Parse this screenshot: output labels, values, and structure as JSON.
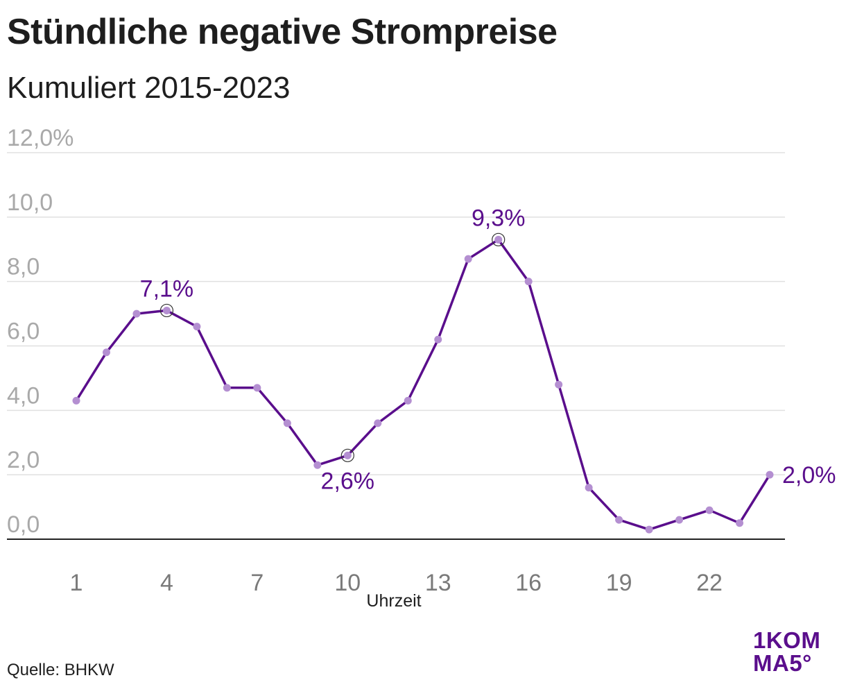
{
  "header": {
    "title": "Stündliche negative Strompreise",
    "subtitle": "Kumuliert 2015-2023"
  },
  "footer": {
    "source": "Quelle: BHKW",
    "logo_line1": "1KOM",
    "logo_line2": "MA5°"
  },
  "colors": {
    "line": "#5a0e8c",
    "marker": "#b48fd1",
    "grid": "#e0e0e0",
    "axis": "#222222",
    "ytick": "#a9a9a9",
    "xtick": "#7a7a7a"
  },
  "chart_data": {
    "type": "line",
    "title": "Stündliche negative Strompreise",
    "subtitle": "Kumuliert 2015-2023",
    "xlabel": "Uhrzeit",
    "ylabel": "",
    "x": [
      1,
      2,
      3,
      4,
      5,
      6,
      7,
      8,
      9,
      10,
      11,
      12,
      13,
      14,
      15,
      16,
      17,
      18,
      19,
      20,
      21,
      22,
      23,
      24
    ],
    "series": [
      {
        "values": [
          4.3,
          5.8,
          7.0,
          7.1,
          6.6,
          4.7,
          4.7,
          3.6,
          2.3,
          2.6,
          3.6,
          4.3,
          6.2,
          8.7,
          9.3,
          8.0,
          4.8,
          1.6,
          0.6,
          0.3,
          0.6,
          0.9,
          0.5,
          2.0
        ]
      }
    ],
    "xticks": [
      1,
      4,
      7,
      10,
      13,
      16,
      19,
      22
    ],
    "xtick_labels": [
      "1",
      "4",
      "7",
      "10",
      "13",
      "16",
      "19",
      "22"
    ],
    "yticks": [
      0,
      2,
      4,
      6,
      8,
      10,
      12
    ],
    "ytick_labels": [
      "0,0",
      "2,0",
      "4,0",
      "6,0",
      "8,0",
      "10,0",
      "12,0%"
    ],
    "ylim": [
      0,
      12
    ],
    "grid": true,
    "annotations": [
      {
        "x": 4,
        "y": 7.1,
        "label": "7,1%",
        "position": "above",
        "circled": true
      },
      {
        "x": 10,
        "y": 2.6,
        "label": "2,6%",
        "position": "below",
        "circled": true
      },
      {
        "x": 15,
        "y": 9.3,
        "label": "9,3%",
        "position": "above",
        "circled": true
      },
      {
        "x": 24,
        "y": 2.0,
        "label": "2,0%",
        "position": "right",
        "circled": false
      }
    ]
  }
}
